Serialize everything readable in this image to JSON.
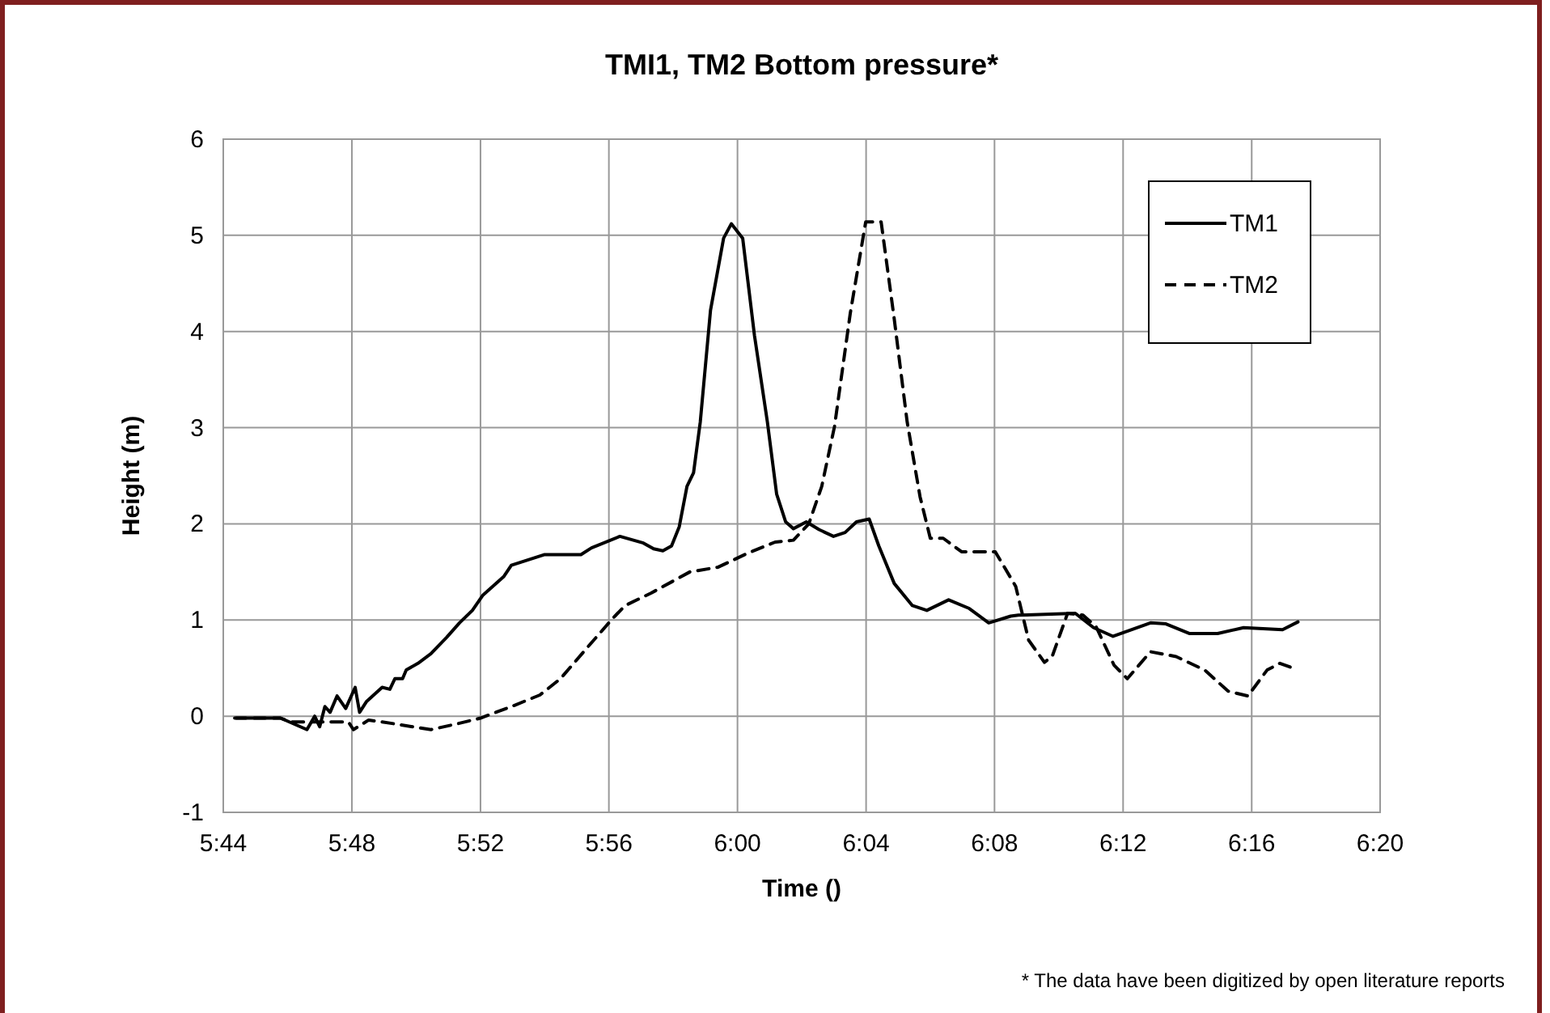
{
  "chart_data": {
    "type": "line",
    "title": "TMI1, TM2 Bottom pressure*",
    "xlabel": "Time ()",
    "ylabel": "Height (m)",
    "annotations": [
      "* The data have been digitized by open literature reports"
    ],
    "xlim": [
      5.7333,
      6.3333
    ],
    "ylim": [
      -1,
      6
    ],
    "yticks": [
      -1,
      0,
      1,
      2,
      3,
      4,
      5,
      6
    ],
    "xticks": [
      {
        "value": 5.7333,
        "label": "5:44"
      },
      {
        "value": 5.8,
        "label": "5:48"
      },
      {
        "value": 5.8667,
        "label": "5:52"
      },
      {
        "value": 5.9333,
        "label": "5:56"
      },
      {
        "value": 6,
        "label": "6:00"
      },
      {
        "value": 6.0667,
        "label": "6:04"
      },
      {
        "value": 6.1333,
        "label": "6:08"
      },
      {
        "value": 6.2,
        "label": "6:12"
      },
      {
        "value": 6.2667,
        "label": "6:16"
      },
      {
        "value": 6.3333,
        "label": "6:20"
      }
    ],
    "grid": true,
    "legend": "top right",
    "marker": "none",
    "series": [
      {
        "name": "TM1",
        "color": "#000000",
        "line_style": "solid",
        "x": [
          5.74,
          5.763,
          5.7767,
          5.7807,
          5.7833,
          5.786,
          5.7887,
          5.7923,
          5.7968,
          5.8017,
          5.804,
          5.8075,
          5.8157,
          5.8197,
          5.8223,
          5.8263,
          5.8282,
          5.8343,
          5.841,
          5.8492,
          5.8558,
          5.8625,
          5.868,
          5.8787,
          5.8827,
          5.9,
          5.9188,
          5.9243,
          5.939,
          5.9512,
          5.9565,
          5.9613,
          5.9658,
          5.9698,
          5.9738,
          5.9772,
          5.9807,
          5.986,
          5.9928,
          5.9968,
          6.0027,
          6.0088,
          6.0155,
          6.0203,
          6.025,
          6.029,
          6.0357,
          6.0423,
          6.0498,
          6.0558,
          6.0617,
          6.0683,
          6.0733,
          6.0813,
          6.0907,
          6.0982,
          6.1095,
          6.1202,
          6.1303,
          6.1417,
          6.1457,
          6.1752,
          6.1847,
          6.1948,
          6.2142,
          6.2222,
          6.2343,
          6.249,
          6.2625,
          6.2827,
          6.2907
        ],
        "values": [
          -0.02,
          -0.02,
          -0.14,
          0,
          -0.11,
          0.1,
          0.04,
          0.21,
          0.08,
          0.3,
          0.04,
          0.15,
          0.3,
          0.28,
          0.39,
          0.39,
          0.48,
          0.55,
          0.65,
          0.82,
          0.97,
          1.1,
          1.26,
          1.45,
          1.57,
          1.68,
          1.68,
          1.75,
          1.87,
          1.8,
          1.74,
          1.72,
          1.77,
          1.97,
          2.39,
          2.53,
          3.06,
          4.22,
          4.97,
          5.12,
          4.97,
          3.96,
          3.06,
          2.31,
          2.02,
          1.95,
          2.02,
          1.94,
          1.87,
          1.91,
          2.02,
          2.05,
          1.77,
          1.38,
          1.15,
          1.1,
          1.21,
          1.12,
          0.97,
          1.04,
          1.05,
          1.07,
          0.92,
          0.83,
          0.97,
          0.96,
          0.86,
          0.86,
          0.92,
          0.9,
          0.98
        ]
      },
      {
        "name": "TM2",
        "color": "#000000",
        "line_style": "dashed",
        "x": [
          5.7392,
          5.763,
          5.7683,
          5.7982,
          5.8008,
          5.8087,
          5.8223,
          5.841,
          5.8545,
          5.8667,
          5.884,
          5.8975,
          5.9082,
          5.9215,
          5.935,
          5.9417,
          5.9552,
          5.9753,
          5.99,
          6.0048,
          6.0195,
          6.029,
          6.037,
          6.0437,
          6.0503,
          6.0585,
          6.0665,
          6.0745,
          6.0813,
          6.088,
          6.0947,
          6.1,
          6.1067,
          6.1162,
          6.1337,
          6.1443,
          6.151,
          6.1592,
          6.1632,
          6.1712,
          6.1792,
          6.186,
          6.1953,
          6.2022,
          6.2142,
          6.2275,
          6.2423,
          6.2545,
          6.2647,
          6.2747,
          6.2813,
          6.2867
        ],
        "values": [
          -0.02,
          -0.02,
          -0.06,
          -0.06,
          -0.14,
          -0.04,
          -0.08,
          -0.14,
          -0.08,
          -0.02,
          0.11,
          0.22,
          0.39,
          0.7,
          1.01,
          1.15,
          1.28,
          1.5,
          1.55,
          1.69,
          1.81,
          1.83,
          2.0,
          2.39,
          3.01,
          4.19,
          5.14,
          5.14,
          4.13,
          3.06,
          2.28,
          1.85,
          1.85,
          1.71,
          1.71,
          1.35,
          0.79,
          0.56,
          0.62,
          1.07,
          1.05,
          0.93,
          0.53,
          0.39,
          0.67,
          0.62,
          0.48,
          0.26,
          0.21,
          0.48,
          0.55,
          0.51
        ]
      }
    ]
  }
}
